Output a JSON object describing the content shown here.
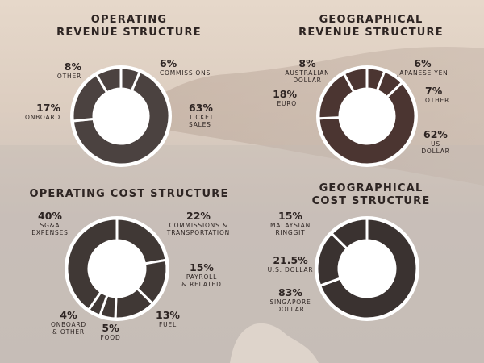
{
  "charts": {
    "operating_revenue": {
      "title_line1": "OPERATING",
      "title_line2": "REVENUE STRUCTURE",
      "slices": [
        {
          "pct": "63%",
          "l1": "TICKET",
          "l2": "SALES"
        },
        {
          "pct": "17%",
          "l1": "ONBOARD",
          "l2": ""
        },
        {
          "pct": "8%",
          "l1": "OTHER",
          "l2": ""
        },
        {
          "pct": "6%",
          "l1": "COMMISSIONS",
          "l2": ""
        }
      ]
    },
    "geographical_revenue": {
      "title_line1": "GEOGRAPHICAL",
      "title_line2": "REVENUE STRUCTURE",
      "slices": [
        {
          "pct": "62%",
          "l1": "US",
          "l2": "DOLLAR"
        },
        {
          "pct": "18%",
          "l1": "EURO",
          "l2": ""
        },
        {
          "pct": "8%",
          "l1": "AUSTRALIAN",
          "l2": "DOLLAR"
        },
        {
          "pct": "6%",
          "l1": "JAPANESE YEN",
          "l2": ""
        },
        {
          "pct": "7%",
          "l1": "OTHER",
          "l2": ""
        }
      ]
    },
    "operating_cost": {
      "title_line1": "OPERATING COST STRUCTURE",
      "title_line2": "",
      "slices": [
        {
          "pct": "22%",
          "l1": "COMMISSIONS &",
          "l2": "TRANSPORTATION"
        },
        {
          "pct": "15%",
          "l1": "PAYROLL",
          "l2": "& RELATED"
        },
        {
          "pct": "13%",
          "l1": "FUEL",
          "l2": ""
        },
        {
          "pct": "5%",
          "l1": "FOOD",
          "l2": ""
        },
        {
          "pct": "4%",
          "l1": "ONBOARD",
          "l2": "& OTHER"
        },
        {
          "pct": "40%",
          "l1": "SG&A",
          "l2": "EXPENSES"
        }
      ]
    },
    "geographical_cost": {
      "title_line1": "GEOGRAPHICAL",
      "title_line2": "COST STRUCTURE",
      "slices": [
        {
          "pct": "83%",
          "l1": "SINGAPORE",
          "l2": "DOLLAR"
        },
        {
          "pct": "21.5%",
          "l1": "U.S. DOLLAR",
          "l2": ""
        },
        {
          "pct": "15%",
          "l1": "MALAYSIAN",
          "l2": "RINGGIT"
        }
      ]
    }
  },
  "chart_data": [
    {
      "type": "pie",
      "title": "OPERATING REVENUE STRUCTURE",
      "categories": [
        "TICKET SALES",
        "ONBOARD",
        "OTHER",
        "COMMISSIONS"
      ],
      "values": [
        63,
        17,
        8,
        6
      ],
      "colors": [
        "#4b4240",
        "#4b4240",
        "#4b4240",
        "#4b4240"
      ]
    },
    {
      "type": "pie",
      "title": "GEOGRAPHICAL REVENUE STRUCTURE",
      "categories": [
        "US DOLLAR",
        "EURO",
        "AUSTRALIAN DOLLAR",
        "JAPANESE YEN",
        "OTHER"
      ],
      "values": [
        62,
        18,
        8,
        6,
        7
      ],
      "colors": [
        "#4b3531",
        "#4b3531",
        "#4b3531",
        "#4b3531",
        "#4b3531"
      ]
    },
    {
      "type": "pie",
      "title": "OPERATING COST STRUCTURE",
      "categories": [
        "COMMISSIONS & TRANSPORTATION",
        "PAYROLL & RELATED",
        "FUEL",
        "FOOD",
        "ONBOARD & OTHER",
        "SG&A EXPENSES"
      ],
      "values": [
        22,
        15,
        13,
        5,
        4,
        40
      ],
      "colors": [
        "#403835",
        "#403835",
        "#403835",
        "#403835",
        "#403835",
        "#403835"
      ]
    },
    {
      "type": "pie",
      "title": "GEOGRAPHICAL COST STRUCTURE",
      "categories": [
        "SINGAPORE DOLLAR",
        "U.S. DOLLAR",
        "MALAYSIAN RINGGIT"
      ],
      "values": [
        83,
        21.5,
        15
      ],
      "colors": [
        "#3a3230",
        "#3a3230",
        "#3a3230"
      ]
    }
  ]
}
